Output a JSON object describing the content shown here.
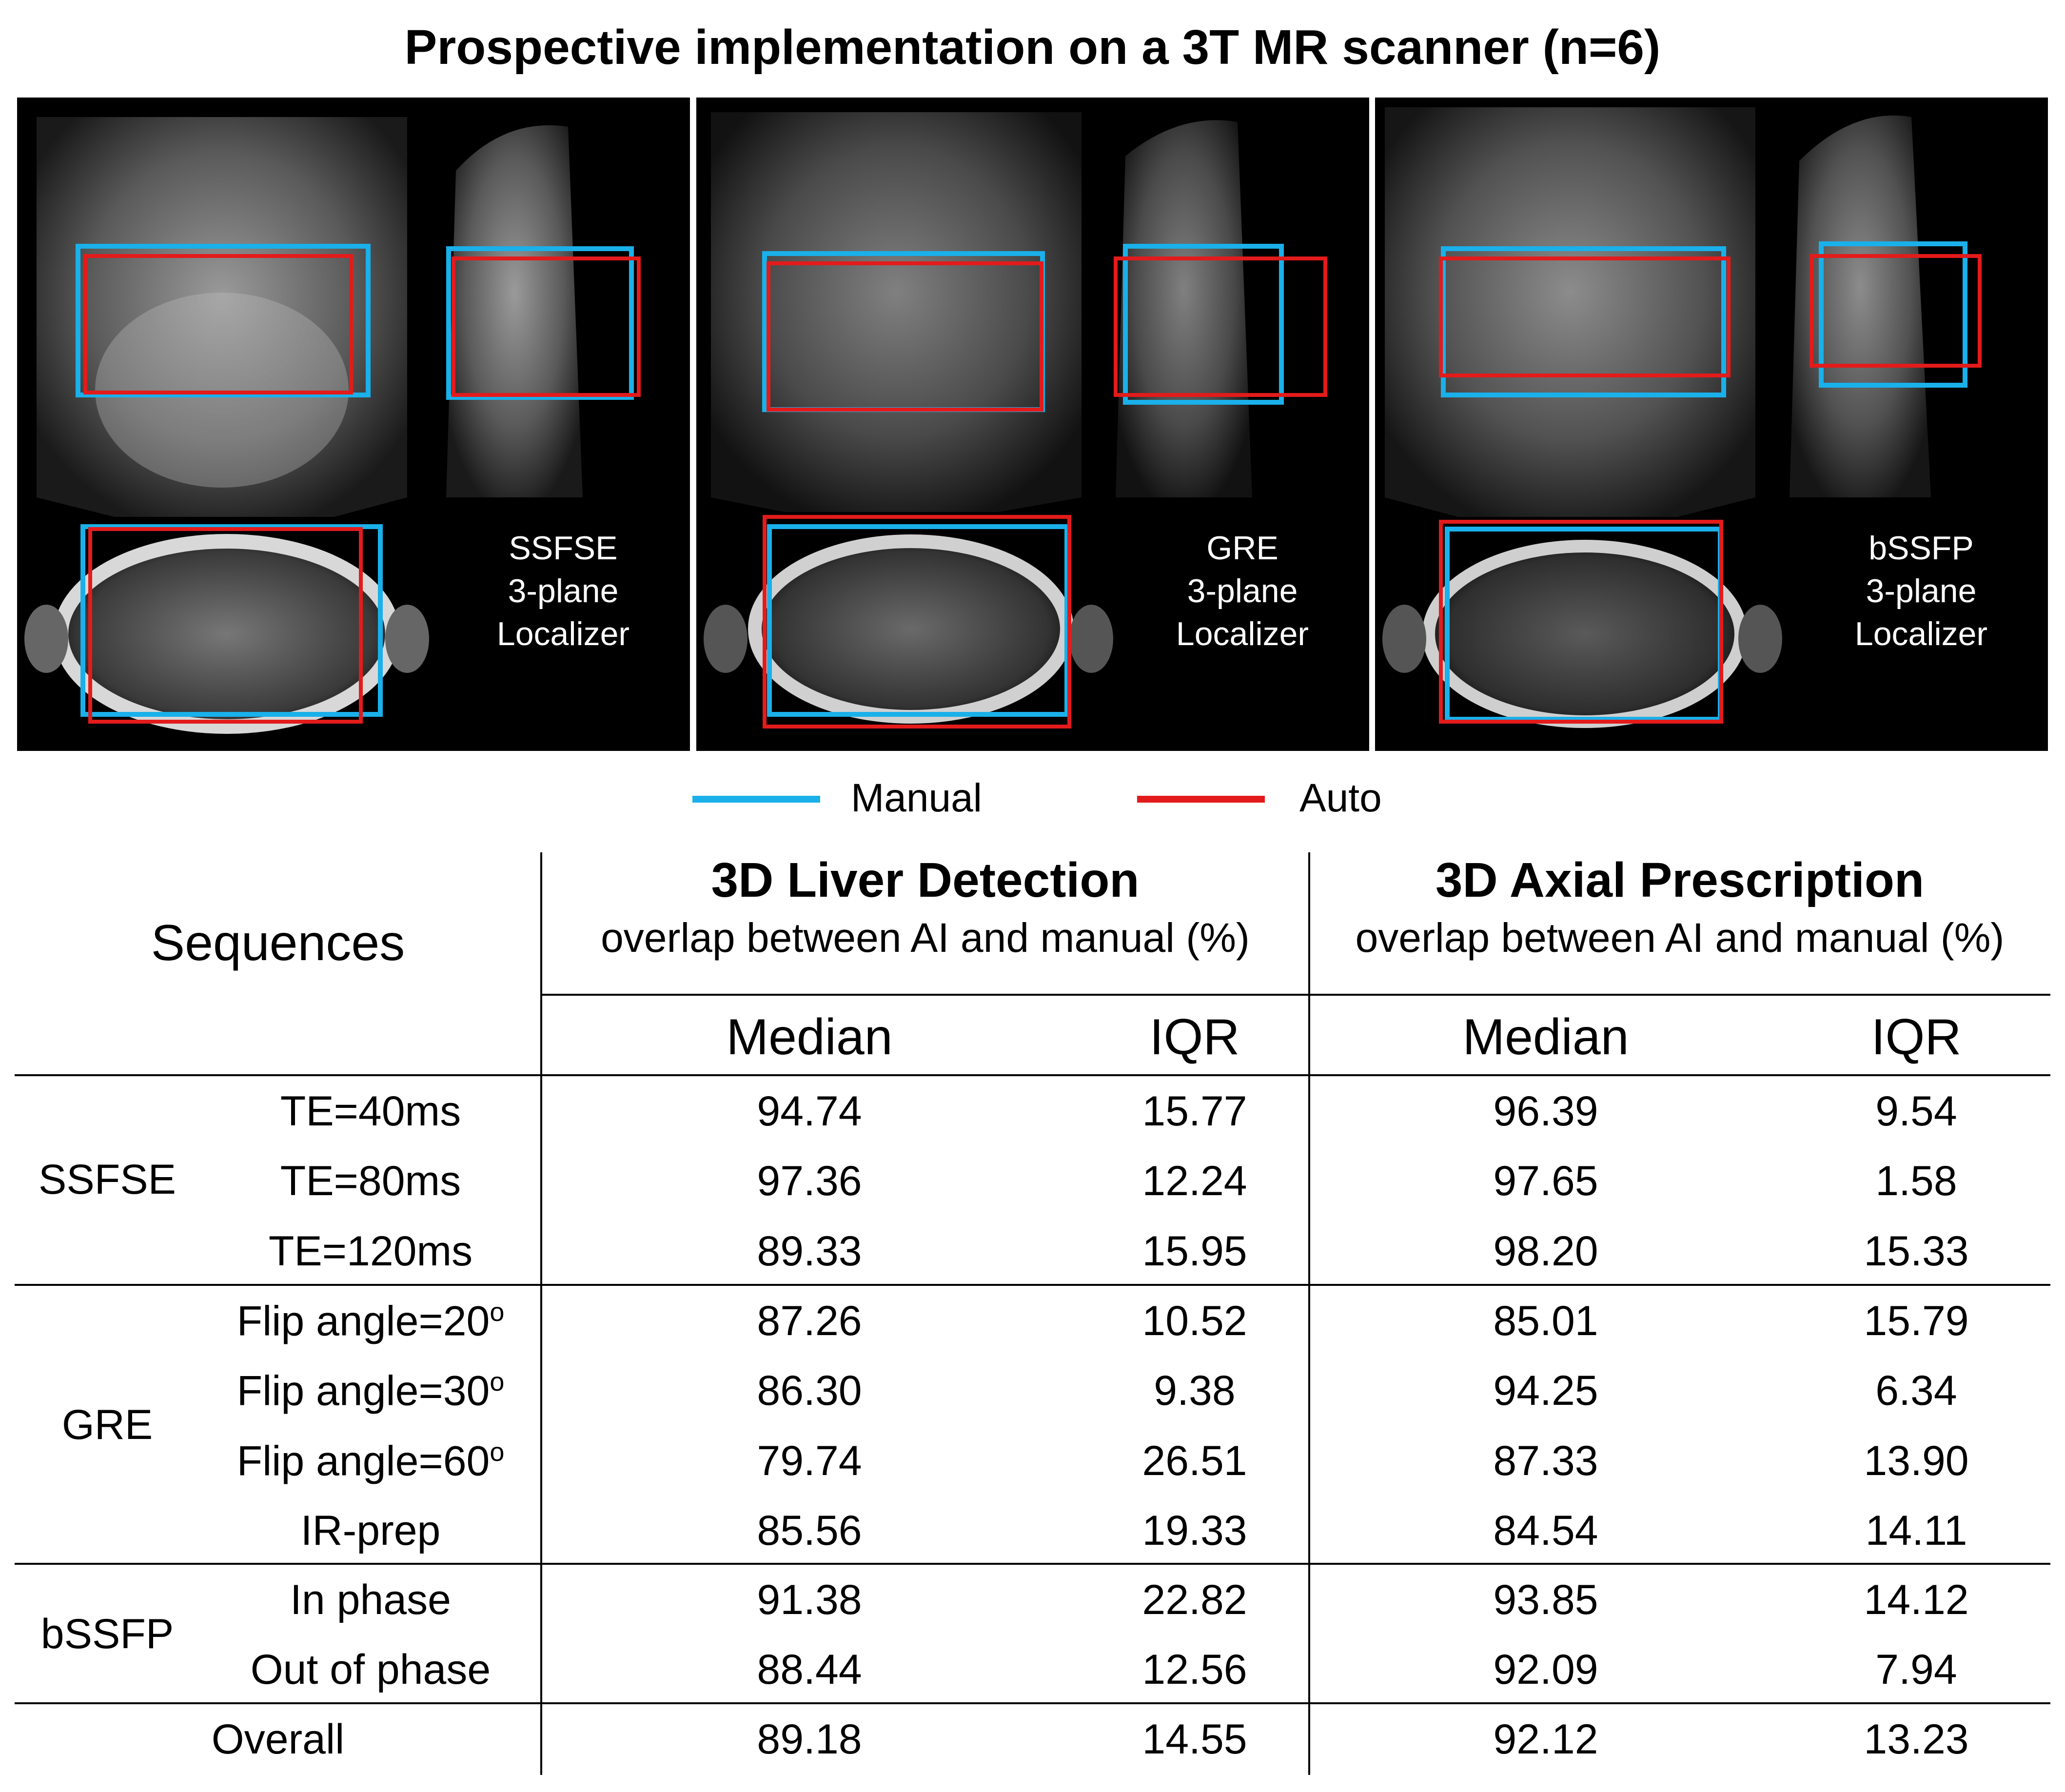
{
  "figure": {
    "title": "Prospective implementation on a 3T MR scanner (n=6)"
  },
  "panels": [
    {
      "label_lines": [
        "SSFSE",
        "3-plane",
        "Localizer"
      ]
    },
    {
      "label_lines": [
        "GRE",
        "3-plane",
        "Localizer"
      ]
    },
    {
      "label_lines": [
        "bSSFP",
        "3-plane",
        "Localizer"
      ]
    }
  ],
  "legend": {
    "manual": {
      "label": "Manual",
      "color": "#1ab0ea"
    },
    "auto": {
      "label": "Auto",
      "color": "#e31b1b"
    }
  },
  "table": {
    "sequences_header": "Sequences",
    "group1": {
      "title": "3D Liver Detection",
      "subtitle": "overlap between AI and manual (%)"
    },
    "group2": {
      "title": "3D Axial Prescription",
      "subtitle": "overlap between AI and manual (%)"
    },
    "col_median": "Median",
    "col_iqr": "IQR",
    "rows": [
      {
        "group": "SSFSE",
        "param": "TE=40ms",
        "values": [
          "94.74",
          "15.77",
          "96.39",
          "9.54"
        ]
      },
      {
        "group": "",
        "param": "TE=80ms",
        "values": [
          "97.36",
          "12.24",
          "97.65",
          "1.58"
        ]
      },
      {
        "group": "",
        "param": "TE=120ms",
        "values": [
          "89.33",
          "15.95",
          "98.20",
          "15.33"
        ]
      },
      {
        "group": "GRE",
        "param": "Flip angle=20",
        "sup": "o",
        "values": [
          "87.26",
          "10.52",
          "85.01",
          "15.79"
        ]
      },
      {
        "group": "",
        "param": "Flip angle=30",
        "sup": "o",
        "values": [
          "86.30",
          "9.38",
          "94.25",
          "6.34"
        ]
      },
      {
        "group": "",
        "param": "Flip angle=60",
        "sup": "o",
        "values": [
          "79.74",
          "26.51",
          "87.33",
          "13.90"
        ]
      },
      {
        "group": "",
        "param": "IR-prep",
        "values": [
          "85.56",
          "19.33",
          "84.54",
          "14.11"
        ]
      },
      {
        "group": "bSSFP",
        "param": "In phase",
        "values": [
          "91.38",
          "22.82",
          "93.85",
          "14.12"
        ]
      },
      {
        "group": "",
        "param": "Out of phase",
        "values": [
          "88.44",
          "12.56",
          "92.09",
          "7.94"
        ]
      }
    ],
    "overall": {
      "label": "Overall",
      "values": [
        "89.18",
        "14.55",
        "92.12",
        "13.23"
      ]
    }
  }
}
